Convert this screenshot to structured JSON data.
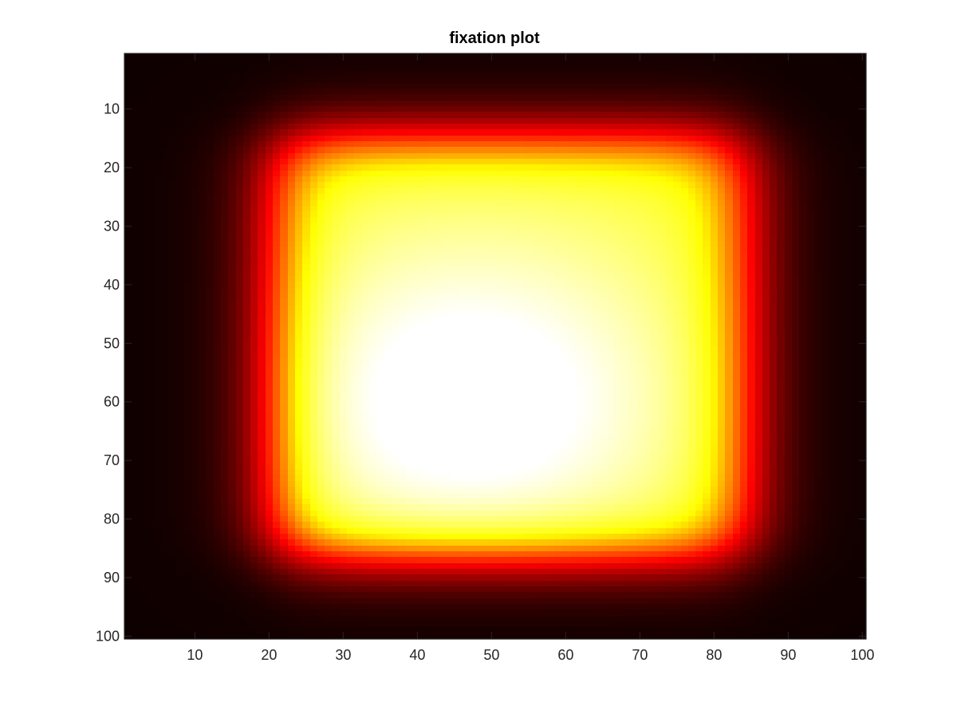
{
  "chart_data": {
    "type": "heatmap",
    "title": "fixation plot",
    "xlabel": "",
    "ylabel": "",
    "colormap": "hot",
    "colormap_stops": [
      "#000000",
      "#ff0000",
      "#ffff00",
      "#ffffff"
    ],
    "grid_size": [
      100,
      100
    ],
    "xlim": [
      0.5,
      100.5
    ],
    "ylim": [
      0.5,
      100.5
    ],
    "y_direction": "reverse",
    "x_ticks": [
      10,
      20,
      30,
      40,
      50,
      60,
      70,
      80,
      90,
      100
    ],
    "y_ticks": [
      10,
      20,
      30,
      40,
      50,
      60,
      70,
      80,
      90,
      100
    ],
    "grid": false,
    "legend": "none",
    "peak": {
      "x": 47,
      "y": 60,
      "value": 1.0
    },
    "high_region": {
      "x_range": [
        21,
        84
      ],
      "y_range": [
        15,
        86
      ]
    },
    "background_value": 0.02
  }
}
